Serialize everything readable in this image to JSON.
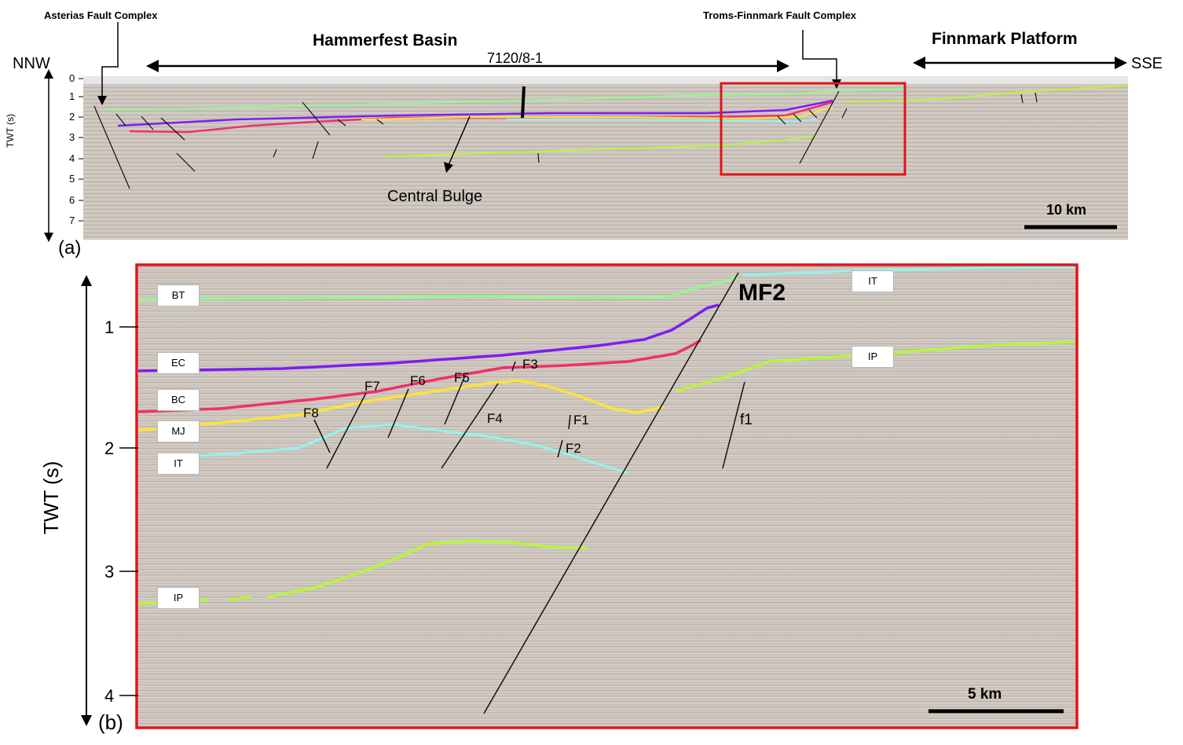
{
  "panel_a": {
    "panel_label": "(a)",
    "annotations": {
      "asterias": "Asterias Fault Complex",
      "hammerfest": "Hammerfest Basin",
      "well": "7120/8-1",
      "troms": "Troms-Finnmark Fault Complex",
      "finnmark": "Finnmark Platform",
      "nnw": "NNW",
      "sse": "SSE",
      "central_bulge": "Central Bulge",
      "scale_bar": "10 km"
    },
    "axis": {
      "title": "TWT (s)",
      "ticks": [
        "0",
        "1",
        "2",
        "3",
        "4",
        "5",
        "6",
        "7"
      ]
    }
  },
  "panel_b": {
    "panel_label": "(b)",
    "axis": {
      "title": "TWT (s)",
      "ticks": [
        "1",
        "2",
        "3",
        "4"
      ]
    },
    "horizons": {
      "bt": "BT",
      "ec": "EC",
      "bc": "BC",
      "mj": "MJ",
      "it_left": "IT",
      "it_right": "IT",
      "ip_left": "IP",
      "ip_right": "IP"
    },
    "faults": {
      "mf2": "MF2",
      "f1": "F1",
      "f2": "F2",
      "f3": "F3",
      "f4": "F4",
      "f5": "F5",
      "f6": "F6",
      "f7": "F7",
      "f8": "F8",
      "f1_lower": "f1"
    },
    "scale_bar": "5 km"
  },
  "colors": {
    "bt": "#8dfc8d",
    "ec": "#7f1cf0",
    "bc": "#f0306a",
    "mj": "#ffe23a",
    "it": "#8ff5f0",
    "ip": "#b9f53a",
    "frame": "#e0141a",
    "seismic": "#cfc8c0"
  }
}
